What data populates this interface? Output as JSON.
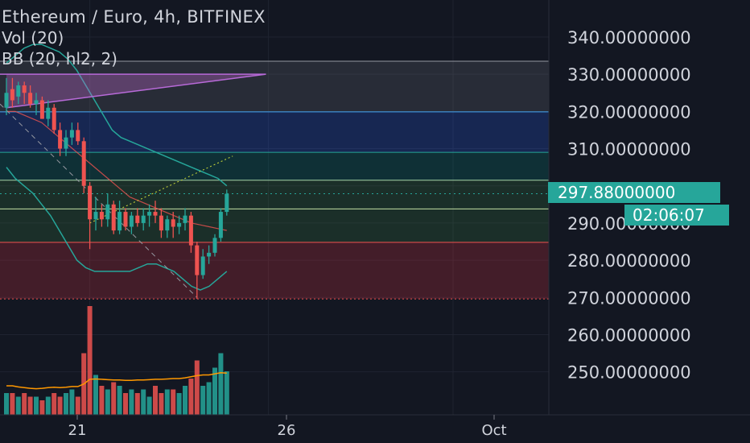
{
  "header": {
    "title": "Ethereum / Euro, 4h, BITFINEX",
    "indicator_vol": "Vol (20)",
    "indicator_bb": "BB (20, hl2, 2)"
  },
  "price_axis": {
    "labels": [
      "340.00000000",
      "330.00000000",
      "320.00000000",
      "310.00000000",
      "290.00000000",
      "280.00000000",
      "270.00000000",
      "260.00000000",
      "250.00000000"
    ]
  },
  "time_axis": {
    "labels": [
      "21",
      "26",
      "Oct"
    ]
  },
  "last_price": {
    "label": "297.88000000",
    "countdown": "02:06:07"
  },
  "colors": {
    "background": "#131722",
    "up": "#26a69a",
    "down": "#ef5350",
    "bb_band": "#26a69a",
    "bb_basis": "#ef5350",
    "volume_ma": "#ff9800",
    "trend_up": "#b86ad8"
  },
  "chart_data": {
    "type": "candlestick",
    "symbol": "Ethereum / Euro",
    "interval": "4h",
    "exchange": "BITFINEX",
    "ylim": [
      245,
      346
    ],
    "yticks": [
      250,
      260,
      270,
      280,
      290,
      300,
      310,
      320,
      330,
      340
    ],
    "last_price": 297.88,
    "horizontal_levels": [
      333.5,
      319.9,
      309.0,
      301.5,
      293.8,
      284.8,
      269.6
    ],
    "zones": [
      {
        "from": 319.9,
        "to": 333.5,
        "color": "gray"
      },
      {
        "from": 309.0,
        "to": 319.9,
        "color": "blue"
      },
      {
        "from": 301.5,
        "to": 309.0,
        "color": "teal"
      },
      {
        "from": 284.8,
        "to": 301.5,
        "color": "green"
      },
      {
        "from": 269.6,
        "to": 284.8,
        "color": "red"
      }
    ],
    "candles": [
      {
        "o": 321,
        "h": 329,
        "l": 319,
        "c": 325
      },
      {
        "o": 326,
        "h": 329,
        "l": 321,
        "c": 323
      },
      {
        "o": 324,
        "h": 328,
        "l": 322,
        "c": 327
      },
      {
        "o": 327,
        "h": 328,
        "l": 322,
        "c": 325
      },
      {
        "o": 325,
        "h": 327,
        "l": 321,
        "c": 322
      },
      {
        "o": 322,
        "h": 325,
        "l": 319,
        "c": 323
      },
      {
        "o": 323,
        "h": 324,
        "l": 318,
        "c": 318
      },
      {
        "o": 318,
        "h": 323,
        "l": 316,
        "c": 321
      },
      {
        "o": 321,
        "h": 322,
        "l": 314,
        "c": 315
      },
      {
        "o": 315,
        "h": 317,
        "l": 308,
        "c": 310
      },
      {
        "o": 310,
        "h": 315,
        "l": 308,
        "c": 313
      },
      {
        "o": 313,
        "h": 317,
        "l": 311,
        "c": 315
      },
      {
        "o": 315,
        "h": 317,
        "l": 311,
        "c": 312
      },
      {
        "o": 312,
        "h": 313,
        "l": 298,
        "c": 300
      },
      {
        "o": 300,
        "h": 301,
        "l": 283,
        "c": 291
      },
      {
        "o": 291,
        "h": 297,
        "l": 288,
        "c": 293
      },
      {
        "o": 293,
        "h": 295,
        "l": 289,
        "c": 291
      },
      {
        "o": 291,
        "h": 298,
        "l": 289,
        "c": 295
      },
      {
        "o": 295,
        "h": 296,
        "l": 287,
        "c": 288
      },
      {
        "o": 288,
        "h": 296,
        "l": 287,
        "c": 293
      },
      {
        "o": 293,
        "h": 294,
        "l": 288,
        "c": 289
      },
      {
        "o": 289,
        "h": 293,
        "l": 287,
        "c": 292
      },
      {
        "o": 292,
        "h": 294,
        "l": 289,
        "c": 290
      },
      {
        "o": 290,
        "h": 294,
        "l": 288,
        "c": 292
      },
      {
        "o": 292,
        "h": 295,
        "l": 289,
        "c": 293
      },
      {
        "o": 293,
        "h": 296,
        "l": 290,
        "c": 292
      },
      {
        "o": 292,
        "h": 294,
        "l": 286,
        "c": 288
      },
      {
        "o": 288,
        "h": 292,
        "l": 286,
        "c": 291
      },
      {
        "o": 291,
        "h": 293,
        "l": 286,
        "c": 289
      },
      {
        "o": 289,
        "h": 292,
        "l": 287,
        "c": 290
      },
      {
        "o": 290,
        "h": 294,
        "l": 288,
        "c": 292
      },
      {
        "o": 292,
        "h": 293,
        "l": 282,
        "c": 284
      },
      {
        "o": 284,
        "h": 285,
        "l": 269.6,
        "c": 276
      },
      {
        "o": 276,
        "h": 283,
        "l": 275,
        "c": 281
      },
      {
        "o": 281,
        "h": 284,
        "l": 279,
        "c": 282
      },
      {
        "o": 282,
        "h": 287,
        "l": 281,
        "c": 286
      },
      {
        "o": 286,
        "h": 294,
        "l": 285,
        "c": 293
      },
      {
        "o": 293,
        "h": 299,
        "l": 292,
        "c": 297.88
      }
    ],
    "volume": [
      6,
      6,
      5,
      6,
      5,
      5,
      4,
      5,
      6,
      5,
      6,
      7,
      5,
      17,
      30,
      11,
      8,
      7,
      9,
      8,
      6,
      7,
      6,
      7,
      5,
      8,
      6,
      7,
      7,
      6,
      8,
      10,
      15,
      8,
      9,
      13,
      17,
      12
    ],
    "volume_ma": [
      8,
      8,
      7.7,
      7.5,
      7.3,
      7.2,
      7.3,
      7.5,
      7.6,
      7.5,
      7.6,
      7.8,
      7.8,
      8.5,
      9.8,
      9.9,
      9.8,
      9.7,
      9.6,
      9.6,
      9.5,
      9.5,
      9.6,
      9.6,
      9.7,
      9.8,
      9.8,
      9.9,
      10,
      10,
      10.2,
      10.5,
      10.8,
      11,
      11,
      11.3,
      11.6,
      11.5
    ],
    "bb_upper": [
      333,
      335,
      337,
      338,
      338,
      337,
      336,
      334,
      331,
      327,
      323,
      319,
      315,
      313,
      312,
      311,
      310,
      309,
      308,
      307,
      306,
      305,
      304,
      303,
      302,
      300
    ],
    "bb_basis": [
      320,
      320,
      319,
      318,
      317,
      315,
      313,
      311,
      309,
      307,
      305,
      303,
      301,
      299,
      297,
      296,
      295,
      294,
      293,
      292,
      291,
      290,
      289.5,
      289,
      288.5,
      288
    ],
    "bb_lower": [
      305,
      302,
      300,
      298,
      295,
      292,
      288,
      284,
      280,
      278,
      277,
      277,
      277,
      277,
      277,
      278,
      279,
      279,
      278,
      277,
      275,
      273,
      272,
      273,
      275,
      277
    ],
    "annotations": {
      "rising_trendline": [
        [
          0,
          321
        ],
        [
          26,
          330
        ]
      ],
      "falling_dashed_line": [
        [
          0,
          322
        ],
        [
          32,
          270
        ]
      ],
      "dotted_projection": [
        [
          14,
          290
        ],
        [
          36,
          308
        ]
      ]
    },
    "xticks": [
      {
        "label": "21",
        "index": 14
      },
      {
        "label": "26",
        "index": 44
      },
      {
        "label": "Oct",
        "index": 75
      }
    ]
  }
}
